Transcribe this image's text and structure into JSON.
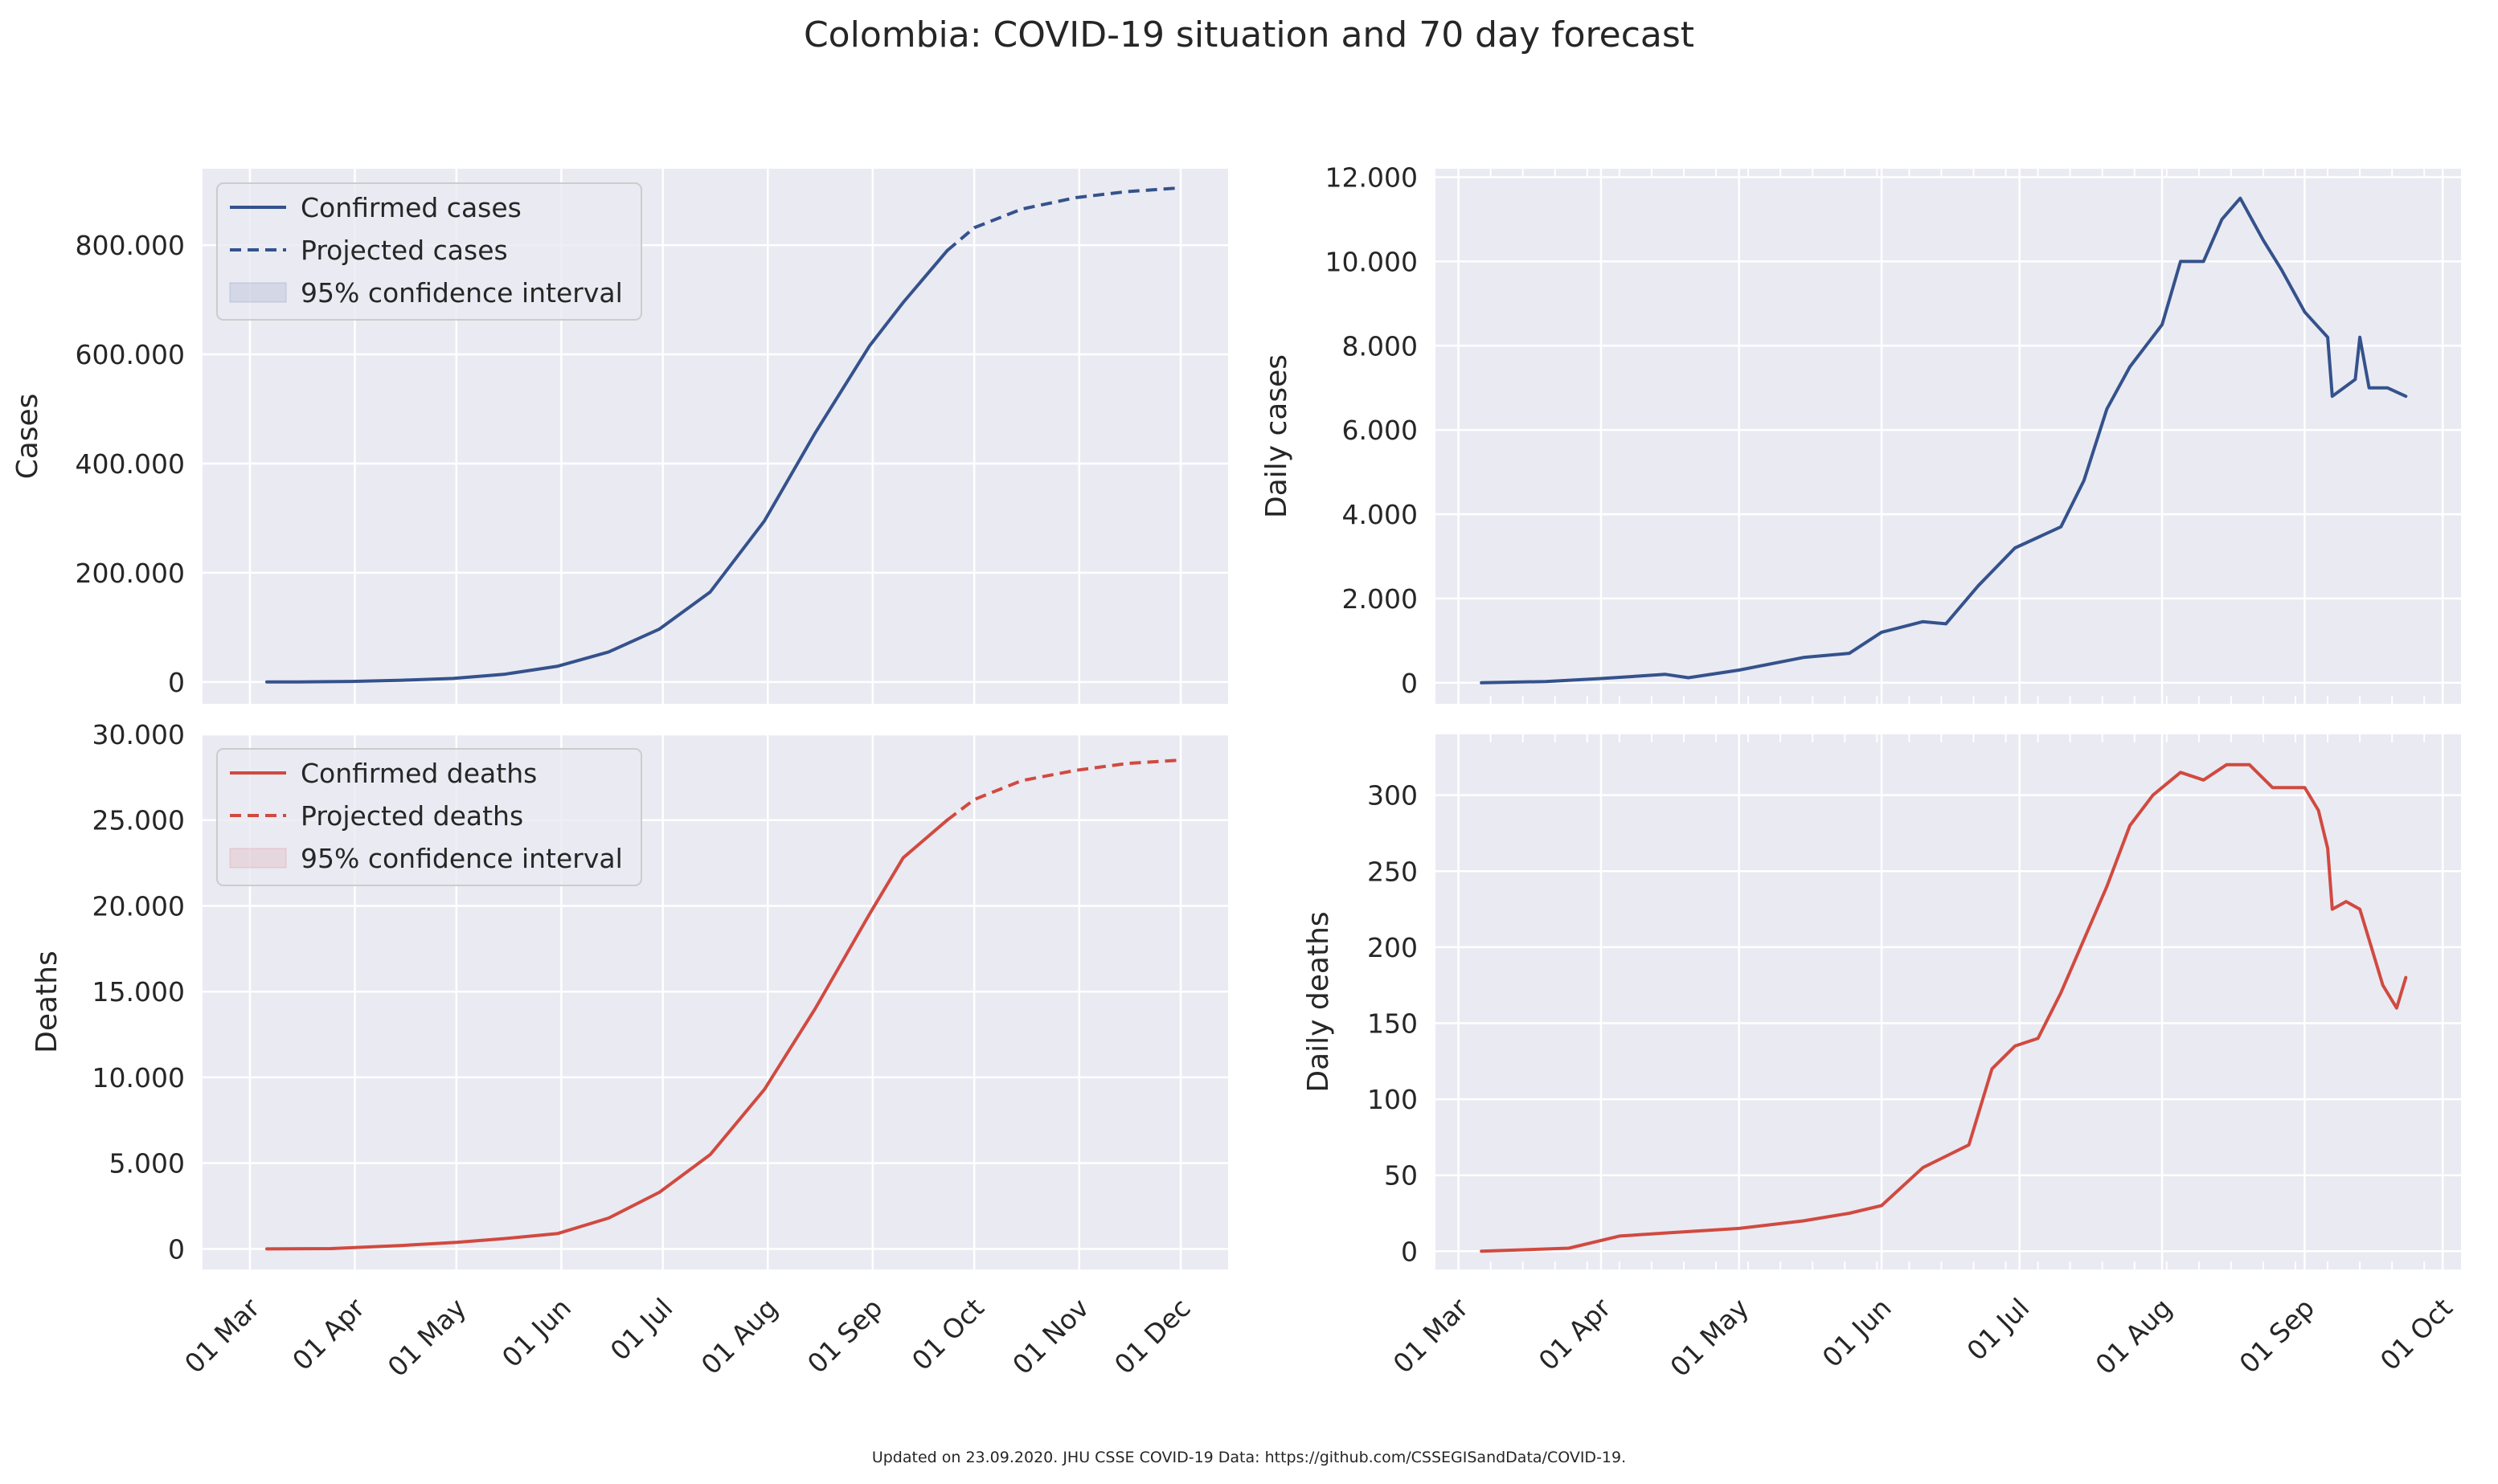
{
  "title": "Colombia: COVID-19 situation and 70 day forecast",
  "footer": "Updated on 23.09.2020. JHU CSSE COVID-19 Data: https://github.com/CSSEGISandData/COVID-19.",
  "colors": {
    "cases": "#34528c",
    "deaths": "#d04a40",
    "panel_bg": "#eaeaf2",
    "grid": "#ffffff",
    "text": "#262626"
  },
  "chart_data": [
    {
      "id": "cases",
      "type": "line",
      "ylabel": "Cases",
      "x_ticks": [
        "01 Mar",
        "01 Apr",
        "01 May",
        "01 Jun",
        "01 Jul",
        "01 Aug",
        "01 Sep",
        "01 Oct",
        "01 Nov",
        "01 Dec"
      ],
      "y_ticks": [
        "0",
        "200.000",
        "400.000",
        "600.000",
        "800.000"
      ],
      "ylim": [
        -40000,
        940000
      ],
      "legend": [
        "Confirmed cases",
        "Projected cases",
        "95% confidence interval"
      ],
      "legend_position": "upper left",
      "series": [
        {
          "name": "Confirmed cases",
          "style": "solid",
          "x": [
            "2020-03-06",
            "2020-03-15",
            "2020-03-31",
            "2020-04-15",
            "2020-04-30",
            "2020-05-15",
            "2020-05-31",
            "2020-06-15",
            "2020-06-30",
            "2020-07-15",
            "2020-07-31",
            "2020-08-15",
            "2020-08-31",
            "2020-09-10",
            "2020-09-23"
          ],
          "y": [
            0,
            100,
            1000,
            3200,
            6500,
            14000,
            29000,
            55000,
            97000,
            165000,
            295000,
            456000,
            615000,
            695000,
            790000
          ]
        },
        {
          "name": "Projected cases",
          "style": "dashed",
          "x": [
            "2020-09-23",
            "2020-10-01",
            "2020-10-15",
            "2020-10-31",
            "2020-11-15",
            "2020-12-01"
          ],
          "y": [
            790000,
            832000,
            866000,
            887000,
            898000,
            905000
          ]
        }
      ]
    },
    {
      "id": "daily_cases",
      "type": "line",
      "ylabel": "Daily cases",
      "x_ticks": [
        "01 Mar",
        "01 Apr",
        "01 May",
        "01 Jun",
        "01 Jul",
        "01 Aug",
        "01 Sep",
        "01 Oct"
      ],
      "y_ticks": [
        "0",
        "2.000",
        "4.000",
        "6.000",
        "8.000",
        "10.000",
        "12.000"
      ],
      "ylim": [
        -500,
        12200
      ],
      "series": [
        {
          "name": "Daily cases",
          "style": "solid",
          "x": [
            "2020-03-06",
            "2020-03-20",
            "2020-04-01",
            "2020-04-15",
            "2020-04-20",
            "2020-05-01",
            "2020-05-15",
            "2020-05-25",
            "2020-06-01",
            "2020-06-10",
            "2020-06-15",
            "2020-06-22",
            "2020-06-30",
            "2020-07-10",
            "2020-07-15",
            "2020-07-20",
            "2020-07-25",
            "2020-08-01",
            "2020-08-05",
            "2020-08-10",
            "2020-08-14",
            "2020-08-18",
            "2020-08-23",
            "2020-08-27",
            "2020-09-01",
            "2020-09-06",
            "2020-09-07",
            "2020-09-12",
            "2020-09-13",
            "2020-09-15",
            "2020-09-19",
            "2020-09-23"
          ],
          "y": [
            0,
            30,
            100,
            200,
            120,
            300,
            600,
            700,
            1200,
            1450,
            1400,
            2300,
            3200,
            3700,
            4800,
            6500,
            7500,
            8500,
            10000,
            10000,
            11000,
            11500,
            10500,
            9800,
            8800,
            8200,
            6800,
            7200,
            8200,
            7000,
            7000,
            6800
          ]
        }
      ]
    },
    {
      "id": "deaths",
      "type": "line",
      "ylabel": "Deaths",
      "x_ticks": [
        "01 Mar",
        "01 Apr",
        "01 May",
        "01 Jun",
        "01 Jul",
        "01 Aug",
        "01 Sep",
        "01 Oct",
        "01 Nov",
        "01 Dec"
      ],
      "y_ticks": [
        "0",
        "5.000",
        "10.000",
        "15.000",
        "20.000",
        "25.000",
        "30.000"
      ],
      "ylim": [
        -1200,
        30000
      ],
      "legend": [
        "Confirmed deaths",
        "Projected deaths",
        "95% confidence interval"
      ],
      "legend_position": "upper left",
      "series": [
        {
          "name": "Confirmed deaths",
          "style": "solid",
          "x": [
            "2020-03-06",
            "2020-03-25",
            "2020-04-15",
            "2020-05-01",
            "2020-05-15",
            "2020-05-31",
            "2020-06-15",
            "2020-06-30",
            "2020-07-15",
            "2020-07-31",
            "2020-08-15",
            "2020-08-31",
            "2020-09-10",
            "2020-09-23"
          ],
          "y": [
            0,
            20,
            200,
            380,
            600,
            900,
            1800,
            3300,
            5500,
            9300,
            14000,
            19500,
            22800,
            25000
          ]
        },
        {
          "name": "Projected deaths",
          "style": "dashed",
          "x": [
            "2020-09-23",
            "2020-10-01",
            "2020-10-15",
            "2020-10-31",
            "2020-11-15",
            "2020-12-01"
          ],
          "y": [
            25000,
            26200,
            27300,
            27900,
            28300,
            28500
          ]
        }
      ]
    },
    {
      "id": "daily_deaths",
      "type": "line",
      "ylabel": "Daily deaths",
      "x_ticks": [
        "01 Mar",
        "01 Apr",
        "01 May",
        "01 Jun",
        "01 Jul",
        "01 Aug",
        "01 Sep",
        "01 Oct"
      ],
      "y_ticks": [
        "0",
        "50",
        "100",
        "150",
        "200",
        "250",
        "300"
      ],
      "ylim": [
        -12,
        340
      ],
      "series": [
        {
          "name": "Daily deaths",
          "style": "solid",
          "x": [
            "2020-03-06",
            "2020-03-25",
            "2020-04-05",
            "2020-04-15",
            "2020-05-01",
            "2020-05-15",
            "2020-05-25",
            "2020-06-01",
            "2020-06-10",
            "2020-06-20",
            "2020-06-25",
            "2020-06-30",
            "2020-07-05",
            "2020-07-10",
            "2020-07-15",
            "2020-07-20",
            "2020-07-25",
            "2020-07-30",
            "2020-08-01",
            "2020-08-05",
            "2020-08-10",
            "2020-08-15",
            "2020-08-20",
            "2020-08-25",
            "2020-09-01",
            "2020-09-04",
            "2020-09-06",
            "2020-09-07",
            "2020-09-10",
            "2020-09-13",
            "2020-09-15",
            "2020-09-18",
            "2020-09-21",
            "2020-09-23"
          ],
          "y": [
            0,
            2,
            10,
            12,
            15,
            20,
            25,
            30,
            55,
            70,
            120,
            135,
            140,
            170,
            205,
            240,
            280,
            300,
            305,
            315,
            310,
            320,
            320,
            305,
            305,
            290,
            265,
            225,
            230,
            225,
            205,
            175,
            160,
            180
          ]
        }
      ]
    }
  ]
}
